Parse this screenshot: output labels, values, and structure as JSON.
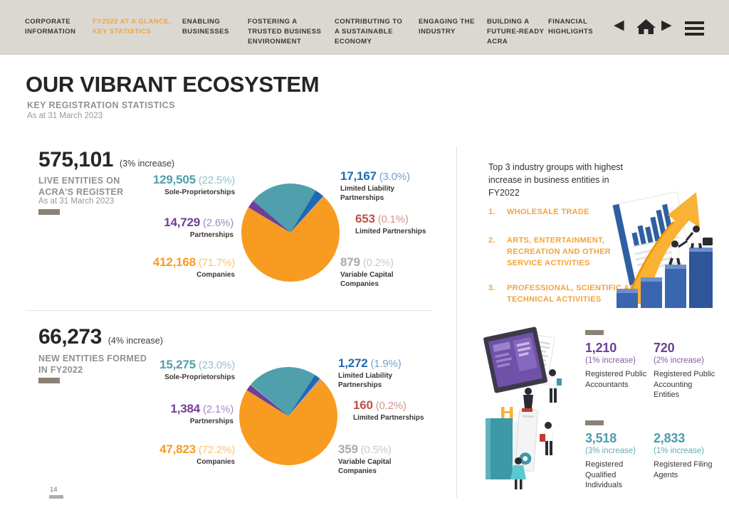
{
  "page": {
    "title": "OUR VIBRANT ECOSYSTEM",
    "subtitle": "KEY REGISTRATION STATISTICS",
    "as_at": "As at 31 March 2023",
    "number": "14"
  },
  "colors": {
    "nav_background": "#DBD8D2",
    "nav_active": "#F0A43F",
    "industry_orange": "#F2A33C",
    "tag_bar_gray": "#8B8175",
    "purple_stat": "#6C4099",
    "teal_stat": "#4A9EAB"
  },
  "nav": {
    "items": [
      {
        "label": "CORPORATE INFORMATION",
        "active": false
      },
      {
        "label": "FY2022 AT A GLANCE, KEY STATISTICS",
        "active": true
      },
      {
        "label": "ENABLING BUSINESSES",
        "active": false
      },
      {
        "label": "FOSTERING A TRUSTED BUSINESS ENVIRONMENT",
        "active": false
      },
      {
        "label": "CONTRIBUTING TO A SUSTAINABLE ECONOMY",
        "active": false
      },
      {
        "label": "ENGAGING THE INDUSTRY",
        "active": false
      },
      {
        "label": "BUILDING A FUTURE-READY ACRA",
        "active": false
      },
      {
        "label": "FINANCIAL HIGHLIGHTS",
        "active": false
      }
    ],
    "icons": [
      {
        "name": "back-icon",
        "glyph": "◀"
      },
      {
        "name": "home-icon",
        "glyph": "house"
      },
      {
        "name": "forward-icon",
        "glyph": "▶"
      },
      {
        "name": "menu-icon",
        "glyph": "hamburger"
      }
    ]
  },
  "chart_data": [
    {
      "type": "pie",
      "headline": "575,101",
      "headline_note": "(3% increase)",
      "title": "LIVE ENTITIES ON ACRA'S REGISTER",
      "as_at": "As at 31 March 2023",
      "start_angle_deg": -50,
      "slices": [
        {
          "key": "sole",
          "label": "Sole-Proprietorships",
          "value": "129,505",
          "pct_label": "(22.5%)",
          "pct": 22.5,
          "color": "#4F9FAD"
        },
        {
          "key": "llp",
          "label": "Limited Liability Partnerships",
          "value": "17,167",
          "pct_label": "(3.0%)",
          "pct": 3.0,
          "color": "#2069B1"
        },
        {
          "key": "lp",
          "label": "Limited Partnerships",
          "value": "653",
          "pct_label": "(0.1%)",
          "pct": 0.1,
          "color": "#C0504A"
        },
        {
          "key": "vcc",
          "label": "Variable Capital Companies",
          "value": "879",
          "pct_label": "(0.2%)",
          "pct": 0.2,
          "color": "#A7A9AC"
        },
        {
          "key": "comp",
          "label": "Companies",
          "value": "412,168",
          "pct_label": "(71.7%)",
          "pct": 71.7,
          "color": "#F79C20"
        },
        {
          "key": "part",
          "label": "Partnerships",
          "value": "14,729",
          "pct_label": "(2.6%)",
          "pct": 2.6,
          "color": "#6F3F98"
        }
      ]
    },
    {
      "type": "pie",
      "headline": "66,273",
      "headline_note": "(4% increase)",
      "title": "NEW ENTITIES FORMED IN FY2022",
      "as_at": "",
      "start_angle_deg": -50,
      "slices": [
        {
          "key": "sole",
          "label": "Sole-Proprietorships",
          "value": "15,275",
          "pct_label": "(23.0%)",
          "pct": 23.0,
          "color": "#4F9FAD"
        },
        {
          "key": "llp",
          "label": "Limited Liability Partnerships",
          "value": "1,272",
          "pct_label": "(1.9%)",
          "pct": 1.9,
          "color": "#2069B1"
        },
        {
          "key": "lp",
          "label": "Limited Partnerships",
          "value": "160",
          "pct_label": "(0.2%)",
          "pct": 0.2,
          "color": "#C0504A"
        },
        {
          "key": "vcc",
          "label": "Variable Capital Companies",
          "value": "359",
          "pct_label": "(0.5%)",
          "pct": 0.5,
          "color": "#A7A9AC"
        },
        {
          "key": "comp",
          "label": "Companies",
          "value": "47,823",
          "pct_label": "(72.2%)",
          "pct": 72.2,
          "color": "#F79C20"
        },
        {
          "key": "part",
          "label": "Partnerships",
          "value": "1,384",
          "pct_label": "(2.1%)",
          "pct": 2.1,
          "color": "#6F3F98"
        }
      ]
    }
  ],
  "industries": {
    "intro": "Top 3 industry groups with highest increase in business entities in FY2022",
    "items": [
      {
        "num": "1.",
        "text": "WHOLESALE TRADE"
      },
      {
        "num": "2.",
        "text": "ARTS, ENTERTAINMENT, RECREATION AND OTHER SERVICE ACTIVITIES"
      },
      {
        "num": "3.",
        "text": "PROFESSIONAL, SCIENTIFIC AND TECHNICAL ACTIVITIES"
      }
    ]
  },
  "professionals": [
    {
      "value": "1,210",
      "note": "(1% increase)",
      "label": "Registered Public Accountants",
      "color": "#6C4099",
      "bar": true
    },
    {
      "value": "720",
      "note": "(2% increase)",
      "label": "Registered Public Accounting Entities",
      "color": "#6C4099",
      "bar": false
    },
    {
      "value": "3,518",
      "note": "(3% increase)",
      "label": "Registered Qualified Individuals",
      "color": "#4A9EAB",
      "bar": true
    },
    {
      "value": "2,833",
      "note": "(1% increase)",
      "label": "Registered Filing Agents",
      "color": "#4A9EAB",
      "bar": false
    }
  ]
}
